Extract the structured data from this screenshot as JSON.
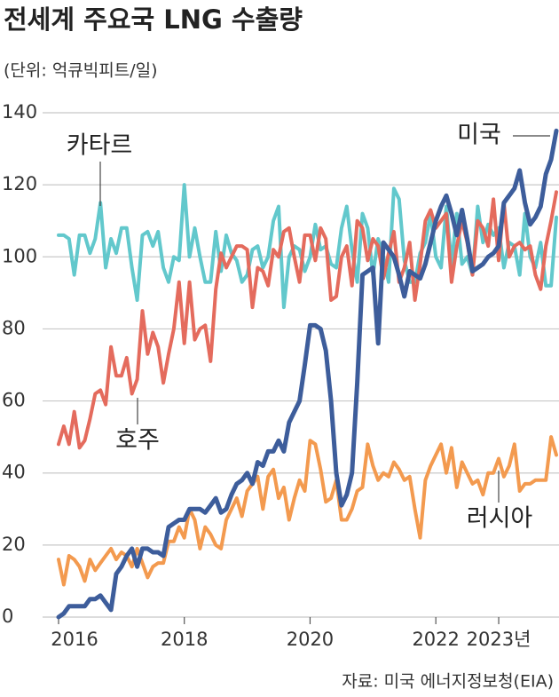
{
  "chart_data": {
    "type": "line",
    "title": "전세계 주요국 LNG 수출량",
    "subtitle": "(단위: 억큐빅피트/일)",
    "source": "자료: 미국 에너지정보청(EIA)",
    "categories": [
      "2016",
      null,
      null,
      null,
      null,
      null,
      null,
      null,
      null,
      null,
      null,
      null,
      null,
      null,
      null,
      null,
      null,
      null,
      null,
      null,
      null,
      null,
      null,
      null,
      "2018",
      null,
      null,
      null,
      null,
      null,
      null,
      null,
      null,
      null,
      null,
      null,
      null,
      null,
      null,
      null,
      null,
      null,
      null,
      null,
      null,
      null,
      null,
      null,
      "2020",
      null,
      null,
      null,
      null,
      null,
      null,
      null,
      null,
      null,
      null,
      null,
      null,
      null,
      null,
      null,
      null,
      null,
      null,
      null,
      null,
      null,
      null,
      null,
      "2022",
      null,
      null,
      null,
      null,
      null,
      null,
      null,
      null,
      null,
      null,
      null,
      "2023년",
      null,
      null,
      null,
      null,
      null,
      null,
      null,
      null,
      null,
      null,
      null
    ],
    "ylim": [
      0,
      140
    ],
    "yticks": [
      0,
      20,
      40,
      60,
      80,
      100,
      120,
      140
    ],
    "grid": true,
    "series": [
      {
        "name": "카타르",
        "color": "#62c8cc",
        "values": [
          106,
          106,
          105,
          95,
          106,
          106,
          101,
          105,
          115,
          97,
          105,
          101,
          108,
          108,
          97,
          88,
          106,
          107,
          103,
          107,
          97,
          93,
          100,
          99,
          120,
          100,
          108,
          100,
          93,
          93,
          107,
          96,
          106,
          101,
          99,
          93,
          95,
          102,
          103,
          97,
          100,
          110,
          114,
          86,
          100,
          103,
          102,
          96,
          100,
          109,
          102,
          103,
          98,
          97,
          108,
          114,
          102,
          93,
          112,
          108,
          95,
          105,
          100,
          93,
          119,
          116,
          99,
          93,
          93,
          101,
          104,
          112,
          100,
          97,
          114,
          98,
          112,
          98,
          100,
          95,
          114,
          104,
          109,
          106,
          108,
          97,
          104,
          103,
          95,
          112,
          100,
          97,
          104,
          92,
          92,
          111
        ]
      },
      {
        "name": "호주",
        "color": "#e46b5d",
        "values": [
          48,
          53,
          48,
          57,
          47,
          49,
          55,
          62,
          63,
          59,
          75,
          67,
          67,
          72,
          62,
          66,
          85,
          73,
          79,
          75,
          65,
          73,
          80,
          93,
          76,
          93,
          77,
          80,
          81,
          71,
          91,
          101,
          97,
          100,
          103,
          103,
          102,
          86,
          97,
          96,
          92,
          102,
          100,
          107,
          108,
          100,
          93,
          106,
          106,
          99,
          108,
          105,
          88,
          89,
          100,
          103,
          92,
          110,
          108,
          99,
          105,
          103,
          94,
          101,
          107,
          93,
          97,
          104,
          88,
          98,
          110,
          113,
          108,
          110,
          112,
          93,
          103,
          110,
          104,
          95,
          110,
          108,
          103,
          116,
          99,
          115,
          100,
          103,
          104,
          102,
          103,
          95,
          91,
          103,
          110,
          118
        ]
      },
      {
        "name": "러시아",
        "color": "#f39a4f",
        "values": [
          16,
          9,
          17,
          16,
          14,
          10,
          16,
          13,
          15,
          17,
          19,
          16,
          18,
          17,
          14,
          19,
          15,
          11,
          14,
          15,
          15,
          21,
          21,
          25,
          22,
          30,
          27,
          19,
          25,
          23,
          20,
          19,
          27,
          30,
          33,
          28,
          35,
          37,
          39,
          30,
          39,
          41,
          33,
          36,
          27,
          33,
          38,
          35,
          49,
          48,
          41,
          32,
          33,
          38,
          27,
          27,
          30,
          35,
          36,
          48,
          42,
          38,
          40,
          39,
          43,
          41,
          38,
          39,
          30,
          22,
          38,
          42,
          45,
          48,
          40,
          47,
          36,
          43,
          40,
          37,
          38,
          34,
          40,
          40,
          44,
          39,
          42,
          48,
          35,
          37,
          37,
          38,
          38,
          38,
          50,
          45
        ]
      },
      {
        "name": "미국",
        "color": "#3d5d9b",
        "values": [
          0,
          1,
          3,
          3,
          3,
          3,
          5,
          5,
          6,
          4,
          2,
          12,
          14,
          17,
          19,
          14,
          19,
          19,
          18,
          18,
          17,
          25,
          26,
          27,
          27,
          30,
          30,
          30,
          29,
          31,
          33,
          29,
          30,
          34,
          37,
          38,
          40,
          37,
          43,
          42,
          46,
          46,
          49,
          46,
          54,
          57,
          60,
          70,
          81,
          81,
          80,
          74,
          60,
          40,
          31,
          34,
          40,
          65,
          95,
          96,
          97,
          76,
          104,
          102,
          100,
          95,
          89,
          96,
          95,
          94,
          98,
          104,
          110,
          114,
          117,
          112,
          106,
          113,
          105,
          96,
          97,
          98,
          100,
          101,
          103,
          115,
          117,
          119,
          124,
          115,
          109,
          111,
          114,
          123,
          127,
          135
        ]
      }
    ]
  }
}
